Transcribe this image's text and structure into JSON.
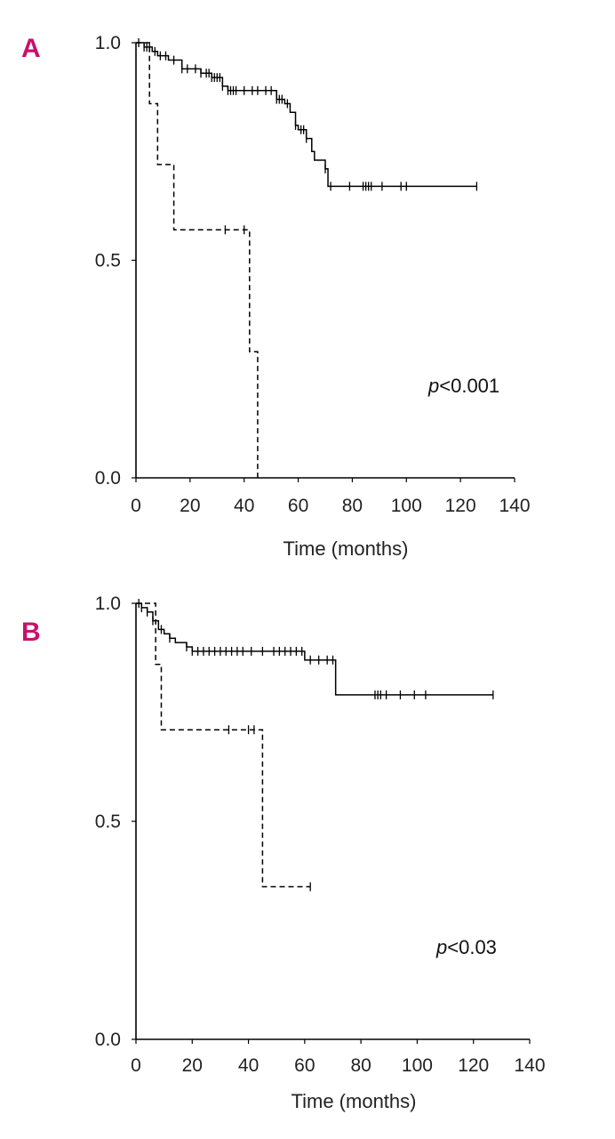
{
  "colors": {
    "panel_label": "#c8106e",
    "line": "#000000"
  },
  "chart_data": [
    {
      "type": "line",
      "subtype": "kaplan-meier",
      "panel_label": "A",
      "xlabel": "Time (months)",
      "ylabel": "",
      "xlim": [
        0,
        140
      ],
      "ylim": [
        0,
        1
      ],
      "x_ticks": [
        "0",
        "20",
        "40",
        "60",
        "80",
        "100",
        "120",
        "140"
      ],
      "y_ticks": [
        "0.0",
        "0.5",
        "1.0"
      ],
      "annotation_italic": "p",
      "annotation_rest": "<0.001",
      "grid": false,
      "series": [
        {
          "style": "solid",
          "x": [
            0,
            3,
            6,
            8,
            12,
            17,
            24,
            28,
            32,
            34,
            52,
            55,
            57,
            59,
            60,
            63,
            65,
            66,
            70,
            71,
            126
          ],
          "y": [
            1.0,
            0.99,
            0.98,
            0.97,
            0.96,
            0.94,
            0.93,
            0.92,
            0.9,
            0.89,
            0.87,
            0.86,
            0.84,
            0.81,
            0.8,
            0.78,
            0.75,
            0.73,
            0.71,
            0.67,
            0.67
          ],
          "censor_x": [
            1,
            3,
            4,
            5,
            7,
            9,
            11,
            14,
            17,
            19,
            22,
            24,
            26,
            27,
            28,
            29,
            30,
            31,
            32,
            34,
            35,
            36,
            37,
            40,
            43,
            45,
            48,
            50,
            52,
            53,
            54,
            56,
            59,
            61,
            62,
            63,
            70,
            72,
            79,
            84,
            85,
            86,
            87,
            91,
            98,
            100,
            126
          ]
        },
        {
          "style": "dashed",
          "x": [
            0,
            5,
            8,
            14,
            41,
            42,
            45
          ],
          "y": [
            1.0,
            0.86,
            0.72,
            0.57,
            0.57,
            0.29,
            0.0
          ],
          "censor_x": [
            33,
            40
          ]
        }
      ]
    },
    {
      "type": "line",
      "subtype": "kaplan-meier",
      "panel_label": "B",
      "xlabel": "Time (months)",
      "ylabel": "",
      "xlim": [
        0,
        140
      ],
      "ylim": [
        0,
        1
      ],
      "x_ticks": [
        "0",
        "20",
        "40",
        "60",
        "80",
        "100",
        "120",
        "140"
      ],
      "y_ticks": [
        "0.0",
        "0.5",
        "1.0"
      ],
      "annotation_italic": "p",
      "annotation_rest": "<0.03",
      "grid": false,
      "series": [
        {
          "style": "solid",
          "x": [
            0,
            2,
            4,
            6,
            8,
            10,
            12,
            14,
            18,
            20,
            60,
            71,
            127
          ],
          "y": [
            1.0,
            0.99,
            0.98,
            0.96,
            0.94,
            0.93,
            0.92,
            0.91,
            0.9,
            0.89,
            0.87,
            0.79,
            0.79
          ],
          "censor_x": [
            1,
            2,
            4,
            6,
            9,
            12,
            18,
            20,
            22,
            24,
            26,
            28,
            30,
            32,
            34,
            36,
            38,
            41,
            45,
            49,
            51,
            53,
            55,
            57,
            59,
            62,
            65,
            68,
            70,
            85,
            86,
            87,
            89,
            94,
            99,
            103,
            127
          ]
        },
        {
          "style": "dashed",
          "x": [
            0,
            7,
            9,
            45,
            62
          ],
          "y": [
            1.0,
            0.86,
            0.71,
            0.35,
            0.35
          ],
          "censor_x": [
            33,
            40,
            42,
            62
          ]
        }
      ]
    }
  ]
}
